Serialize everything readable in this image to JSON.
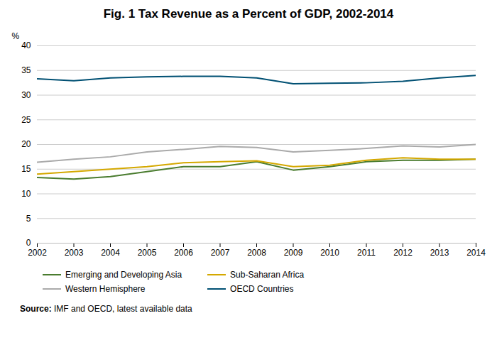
{
  "chart_data": {
    "type": "line",
    "title": "Fig. 1 Tax Revenue as a Percent of GDP, 2002-2014",
    "ylabel": "%",
    "annotations": [
      "Source: IMF and OECD, latest available data"
    ],
    "x": [
      2002,
      2003,
      2004,
      2005,
      2006,
      2007,
      2008,
      2009,
      2010,
      2011,
      2012,
      2013,
      2014
    ],
    "series": [
      {
        "name": "Emerging and Developing Asia",
        "color": "#4a7c2f",
        "values": [
          13.3,
          13.0,
          13.5,
          14.5,
          15.5,
          15.5,
          16.5,
          14.8,
          15.5,
          16.5,
          16.8,
          16.8,
          17.0
        ]
      },
      {
        "name": "Sub-Saharan Africa",
        "color": "#d4a800",
        "values": [
          14.0,
          14.5,
          15.0,
          15.5,
          16.3,
          16.5,
          16.7,
          15.5,
          15.8,
          16.8,
          17.3,
          17.0,
          17.0
        ]
      },
      {
        "name": "Western Hemisphere",
        "color": "#aaaaaa",
        "values": [
          16.4,
          17.0,
          17.5,
          18.5,
          19.0,
          19.6,
          19.4,
          18.5,
          18.8,
          19.2,
          19.7,
          19.5,
          20.0
        ]
      },
      {
        "name": "OECD Countries",
        "color": "#005073",
        "values": [
          33.3,
          32.9,
          33.5,
          33.7,
          33.8,
          33.8,
          33.5,
          32.3,
          32.4,
          32.5,
          32.8,
          33.5,
          34.0
        ]
      }
    ],
    "xlim": [
      2002,
      2014
    ],
    "xticks": [
      2002,
      2003,
      2004,
      2005,
      2006,
      2007,
      2008,
      2009,
      2010,
      2011,
      2012,
      2013,
      2014
    ],
    "ylim": [
      0,
      40
    ],
    "yticks": [
      0,
      5,
      10,
      15,
      20,
      25,
      30,
      35,
      40
    ],
    "grid": "y",
    "legend": "bottom"
  }
}
